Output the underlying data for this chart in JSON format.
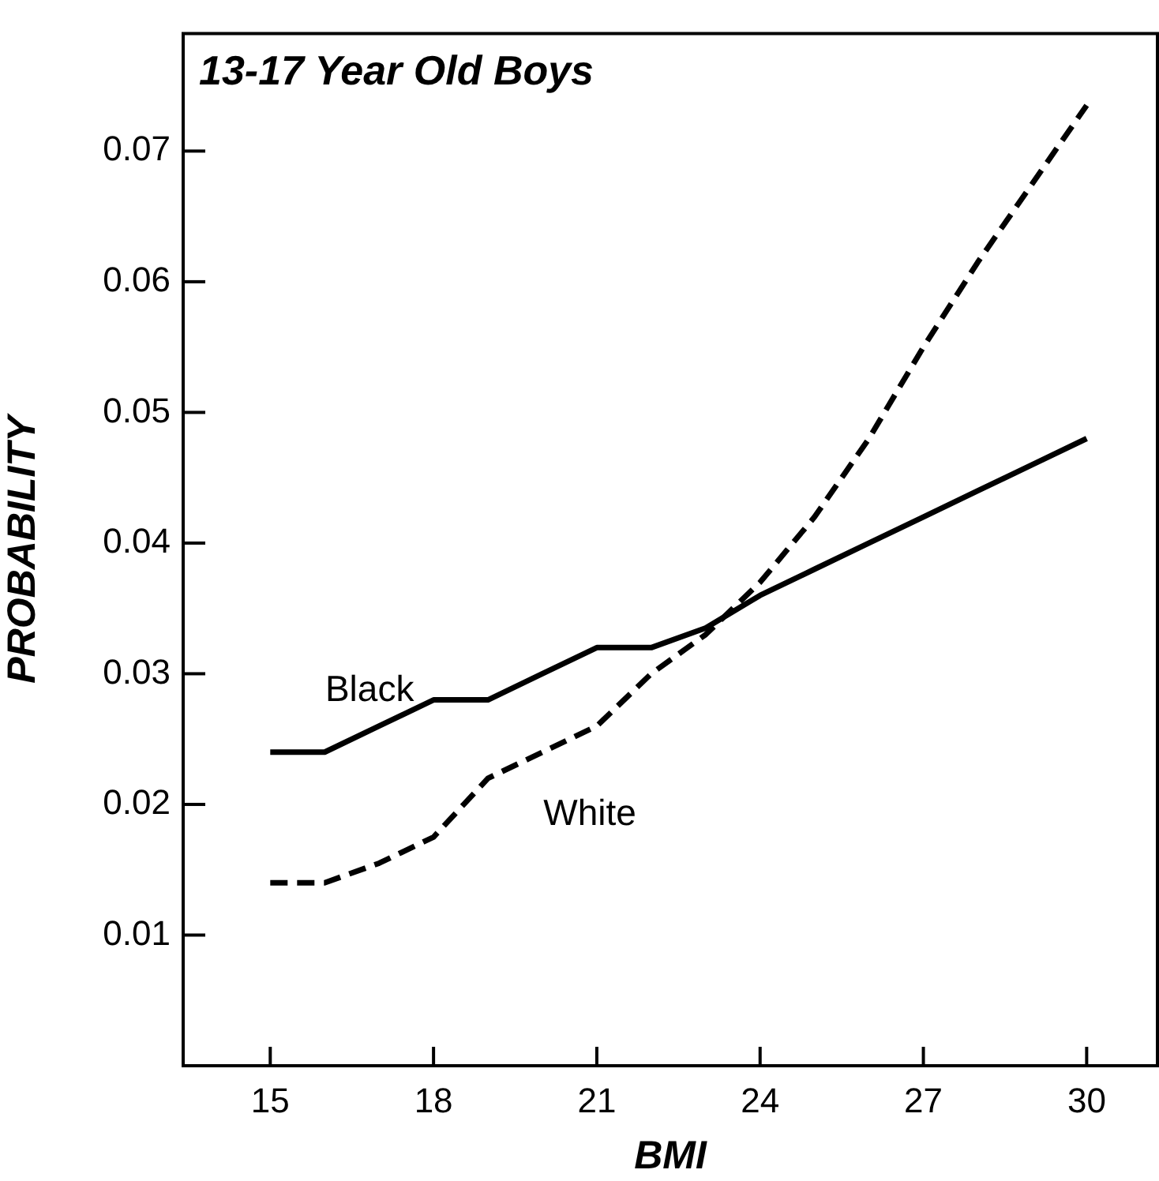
{
  "chart_data": {
    "type": "line",
    "title": "13-17 Year Old Boys",
    "xlabel": "BMI",
    "ylabel": "PROBABILITY",
    "x": [
      15,
      16,
      17,
      18,
      19,
      20,
      21,
      22,
      23,
      24,
      25,
      26,
      27,
      28,
      29,
      30
    ],
    "series": [
      {
        "name": "Black",
        "color": "#000000",
        "line_style": "solid",
        "values": [
          0.024,
          0.024,
          0.026,
          0.028,
          0.028,
          0.03,
          0.032,
          0.032,
          0.0335,
          0.036,
          0.038,
          0.04,
          0.042,
          0.044,
          0.046,
          0.048
        ]
      },
      {
        "name": "White",
        "color": "#000000",
        "line_style": "dashed",
        "values": [
          0.014,
          0.014,
          0.0155,
          0.0175,
          0.022,
          0.024,
          0.026,
          0.03,
          0.033,
          0.037,
          0.042,
          0.048,
          0.055,
          0.0615,
          0.0675,
          0.0735
        ]
      }
    ],
    "xlim": [
      13.4,
      31.3
    ],
    "xticks": [
      15,
      18,
      21,
      24,
      27,
      30
    ],
    "ylim": [
      0,
      0.079
    ],
    "yticks": [
      0.01,
      0.02,
      0.03,
      0.04,
      0.05,
      0.06,
      0.07
    ],
    "grid": false,
    "legend": false,
    "marker": "none"
  }
}
